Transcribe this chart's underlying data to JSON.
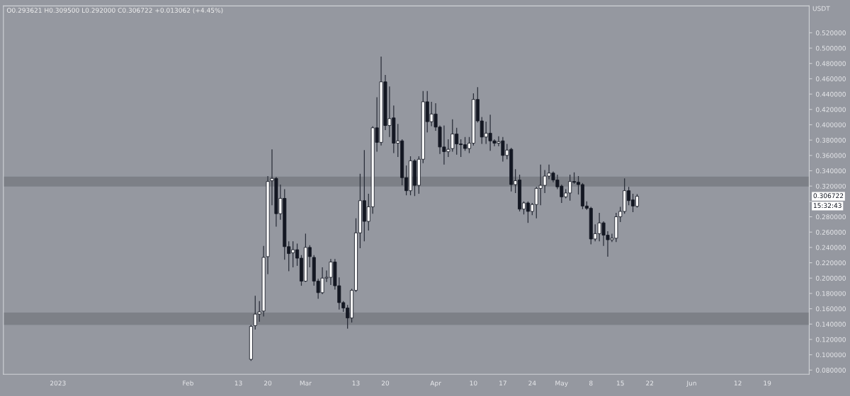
{
  "chart_data": {
    "type": "candlestick",
    "subtitle": "O0.293621 H0.309500 L0.292000 C0.306722 +0.013062 (+4.45%)",
    "ylabel": "USDT",
    "x": [
      "2023-02-16",
      "2023-02-17",
      "2023-02-18",
      "2023-02-19",
      "2023-02-20",
      "2023-02-21",
      "2023-02-22",
      "2023-02-23",
      "2023-02-24",
      "2023-02-25",
      "2023-02-26",
      "2023-02-27",
      "2023-02-28",
      "2023-03-01",
      "2023-03-02",
      "2023-03-03",
      "2023-03-04",
      "2023-03-05",
      "2023-03-06",
      "2023-03-07",
      "2023-03-08",
      "2023-03-09",
      "2023-03-10",
      "2023-03-11",
      "2023-03-12",
      "2023-03-13",
      "2023-03-14",
      "2023-03-15",
      "2023-03-16",
      "2023-03-17",
      "2023-03-18",
      "2023-03-19",
      "2023-03-20",
      "2023-03-21",
      "2023-03-22",
      "2023-03-23",
      "2023-03-24",
      "2023-03-25",
      "2023-03-26",
      "2023-03-27",
      "2023-03-28",
      "2023-03-29",
      "2023-03-30",
      "2023-03-31",
      "2023-04-01",
      "2023-04-02",
      "2023-04-03",
      "2023-04-04",
      "2023-04-05",
      "2023-04-06",
      "2023-04-07",
      "2023-04-08",
      "2023-04-09",
      "2023-04-10",
      "2023-04-11",
      "2023-04-12",
      "2023-04-13",
      "2023-04-14",
      "2023-04-15",
      "2023-04-16",
      "2023-04-17",
      "2023-04-18",
      "2023-04-19",
      "2023-04-20",
      "2023-04-21",
      "2023-04-22",
      "2023-04-23",
      "2023-04-24",
      "2023-04-25",
      "2023-04-26",
      "2023-04-27",
      "2023-04-28",
      "2023-04-29",
      "2023-04-30",
      "2023-05-01",
      "2023-05-02",
      "2023-05-03",
      "2023-05-04",
      "2023-05-05",
      "2023-05-06",
      "2023-05-07",
      "2023-05-08",
      "2023-05-09",
      "2023-05-10",
      "2023-05-11",
      "2023-05-12",
      "2023-05-13",
      "2023-05-14",
      "2023-05-15",
      "2023-05-16",
      "2023-05-17",
      "2023-05-18",
      "2023-05-19"
    ],
    "ohlc": [
      [
        0.094,
        0.139,
        0.092,
        0.137
      ],
      [
        0.138,
        0.177,
        0.133,
        0.153
      ],
      [
        0.153,
        0.17,
        0.143,
        0.156
      ],
      [
        0.157,
        0.242,
        0.15,
        0.227
      ],
      [
        0.228,
        0.333,
        0.205,
        0.326
      ],
      [
        0.327,
        0.368,
        0.295,
        0.33
      ],
      [
        0.33,
        0.332,
        0.267,
        0.284
      ],
      [
        0.284,
        0.322,
        0.276,
        0.304
      ],
      [
        0.304,
        0.316,
        0.224,
        0.241
      ],
      [
        0.241,
        0.248,
        0.209,
        0.232
      ],
      [
        0.233,
        0.248,
        0.214,
        0.237
      ],
      [
        0.237,
        0.245,
        0.216,
        0.226
      ],
      [
        0.226,
        0.23,
        0.19,
        0.196
      ],
      [
        0.196,
        0.258,
        0.195,
        0.24
      ],
      [
        0.24,
        0.243,
        0.214,
        0.228
      ],
      [
        0.227,
        0.23,
        0.19,
        0.196
      ],
      [
        0.196,
        0.199,
        0.173,
        0.181
      ],
      [
        0.181,
        0.214,
        0.179,
        0.2
      ],
      [
        0.2,
        0.21,
        0.195,
        0.201
      ],
      [
        0.201,
        0.225,
        0.191,
        0.221
      ],
      [
        0.221,
        0.225,
        0.185,
        0.19
      ],
      [
        0.19,
        0.201,
        0.159,
        0.168
      ],
      [
        0.168,
        0.17,
        0.156,
        0.161
      ],
      [
        0.161,
        0.165,
        0.134,
        0.148
      ],
      [
        0.148,
        0.186,
        0.142,
        0.184
      ],
      [
        0.184,
        0.278,
        0.182,
        0.259
      ],
      [
        0.259,
        0.336,
        0.239,
        0.301
      ],
      [
        0.301,
        0.367,
        0.248,
        0.274
      ],
      [
        0.274,
        0.31,
        0.262,
        0.293
      ],
      [
        0.293,
        0.398,
        0.284,
        0.396
      ],
      [
        0.396,
        0.436,
        0.365,
        0.377
      ],
      [
        0.377,
        0.489,
        0.373,
        0.456
      ],
      [
        0.456,
        0.465,
        0.393,
        0.399
      ],
      [
        0.399,
        0.45,
        0.384,
        0.408
      ],
      [
        0.409,
        0.425,
        0.363,
        0.376
      ],
      [
        0.376,
        0.401,
        0.358,
        0.379
      ],
      [
        0.379,
        0.381,
        0.321,
        0.331
      ],
      [
        0.331,
        0.347,
        0.308,
        0.314
      ],
      [
        0.314,
        0.359,
        0.308,
        0.353
      ],
      [
        0.353,
        0.355,
        0.307,
        0.321
      ],
      [
        0.321,
        0.359,
        0.31,
        0.355
      ],
      [
        0.355,
        0.444,
        0.35,
        0.43
      ],
      [
        0.43,
        0.444,
        0.39,
        0.404
      ],
      [
        0.404,
        0.43,
        0.398,
        0.414
      ],
      [
        0.414,
        0.428,
        0.392,
        0.397
      ],
      [
        0.397,
        0.399,
        0.362,
        0.371
      ],
      [
        0.371,
        0.399,
        0.348,
        0.365
      ],
      [
        0.365,
        0.381,
        0.358,
        0.368
      ],
      [
        0.369,
        0.407,
        0.365,
        0.388
      ],
      [
        0.388,
        0.396,
        0.361,
        0.375
      ],
      [
        0.375,
        0.381,
        0.358,
        0.374
      ],
      [
        0.374,
        0.384,
        0.366,
        0.369
      ],
      [
        0.369,
        0.384,
        0.363,
        0.376
      ],
      [
        0.376,
        0.441,
        0.373,
        0.433
      ],
      [
        0.433,
        0.449,
        0.403,
        0.405
      ],
      [
        0.405,
        0.41,
        0.375,
        0.384
      ],
      [
        0.384,
        0.404,
        0.375,
        0.389
      ],
      [
        0.389,
        0.413,
        0.366,
        0.379
      ],
      [
        0.379,
        0.381,
        0.372,
        0.376
      ],
      [
        0.376,
        0.385,
        0.372,
        0.378
      ],
      [
        0.379,
        0.384,
        0.352,
        0.36
      ],
      [
        0.36,
        0.375,
        0.355,
        0.367
      ],
      [
        0.368,
        0.37,
        0.313,
        0.322
      ],
      [
        0.322,
        0.342,
        0.311,
        0.327
      ],
      [
        0.328,
        0.335,
        0.287,
        0.29
      ],
      [
        0.29,
        0.3,
        0.283,
        0.298
      ],
      [
        0.298,
        0.3,
        0.272,
        0.287
      ],
      [
        0.287,
        0.298,
        0.282,
        0.296
      ],
      [
        0.296,
        0.319,
        0.278,
        0.317
      ],
      [
        0.317,
        0.348,
        0.295,
        0.321
      ],
      [
        0.321,
        0.341,
        0.311,
        0.333
      ],
      [
        0.333,
        0.348,
        0.329,
        0.337
      ],
      [
        0.337,
        0.339,
        0.325,
        0.328
      ],
      [
        0.328,
        0.335,
        0.316,
        0.319
      ],
      [
        0.32,
        0.322,
        0.298,
        0.306
      ],
      [
        0.306,
        0.316,
        0.304,
        0.311
      ],
      [
        0.311,
        0.335,
        0.301,
        0.326
      ],
      [
        0.326,
        0.338,
        0.323,
        0.325
      ],
      [
        0.325,
        0.333,
        0.309,
        0.322
      ],
      [
        0.322,
        0.324,
        0.29,
        0.294
      ],
      [
        0.294,
        0.3,
        0.289,
        0.291
      ],
      [
        0.291,
        0.293,
        0.244,
        0.251
      ],
      [
        0.251,
        0.27,
        0.248,
        0.258
      ],
      [
        0.258,
        0.285,
        0.248,
        0.272
      ],
      [
        0.272,
        0.274,
        0.242,
        0.256
      ],
      [
        0.256,
        0.261,
        0.228,
        0.25
      ],
      [
        0.25,
        0.258,
        0.247,
        0.252
      ],
      [
        0.252,
        0.285,
        0.247,
        0.28
      ],
      [
        0.28,
        0.293,
        0.273,
        0.287
      ],
      [
        0.287,
        0.33,
        0.284,
        0.314
      ],
      [
        0.314,
        0.319,
        0.295,
        0.301
      ],
      [
        0.302,
        0.31,
        0.286,
        0.294
      ],
      [
        0.293621,
        0.3095,
        0.292,
        0.306722
      ]
    ],
    "colors": [
      "#ffffff",
      "#ffffff",
      "#ffffff",
      "#ffffff",
      "#ffffff",
      "#ffffff",
      "#131722",
      "#ffffff",
      "#131722",
      "#131722",
      "#ffffff",
      "#131722",
      "#131722",
      "#ffffff",
      "#131722",
      "#131722",
      "#131722",
      "#ffffff",
      "#ffffff",
      "#ffffff",
      "#131722",
      "#131722",
      "#131722",
      "#131722",
      "#ffffff",
      "#ffffff",
      "#ffffff",
      "#131722",
      "#ffffff",
      "#ffffff",
      "#131722",
      "#ffffff",
      "#131722",
      "#ffffff",
      "#131722",
      "#ffffff",
      "#131722",
      "#131722",
      "#ffffff",
      "#131722",
      "#ffffff",
      "#ffffff",
      "#131722",
      "#ffffff",
      "#131722",
      "#131722",
      "#131722",
      "#ffffff",
      "#ffffff",
      "#131722",
      "#131722",
      "#131722",
      "#ffffff",
      "#ffffff",
      "#131722",
      "#131722",
      "#ffffff",
      "#131722",
      "#131722",
      "#ffffff",
      "#131722",
      "#ffffff",
      "#131722",
      "#ffffff",
      "#131722",
      "#ffffff",
      "#131722",
      "#ffffff",
      "#ffffff",
      "#ffffff",
      "#ffffff",
      "#ffffff",
      "#131722",
      "#131722",
      "#131722",
      "#ffffff",
      "#ffffff",
      "#131722",
      "#131722",
      "#131722",
      "#131722",
      "#131722",
      "#ffffff",
      "#ffffff",
      "#131722",
      "#131722",
      "#ffffff",
      "#ffffff",
      "#ffffff",
      "#ffffff",
      "#131722",
      "#131722",
      "#ffffff"
    ],
    "xlim": [
      "2022-12-19",
      "2023-06-29"
    ],
    "xticks": [
      {
        "value": "2023-01-01",
        "label": "2023"
      },
      {
        "value": "2023-02-01",
        "label": "Feb"
      },
      {
        "value": "2023-02-13",
        "label": "13"
      },
      {
        "value": "2023-02-20",
        "label": "20"
      },
      {
        "value": "2023-03-01",
        "label": "Mar"
      },
      {
        "value": "2023-03-13",
        "label": "13"
      },
      {
        "value": "2023-03-20",
        "label": "20"
      },
      {
        "value": "2023-04-01",
        "label": "Apr"
      },
      {
        "value": "2023-04-10",
        "label": "10"
      },
      {
        "value": "2023-04-17",
        "label": "17"
      },
      {
        "value": "2023-04-24",
        "label": "24"
      },
      {
        "value": "2023-05-01",
        "label": "May"
      },
      {
        "value": "2023-05-08",
        "label": "8"
      },
      {
        "value": "2023-05-15",
        "label": "15"
      },
      {
        "value": "2023-05-22",
        "label": "22"
      },
      {
        "value": "2023-06-01",
        "label": "Jun"
      },
      {
        "value": "2023-06-12",
        "label": "12"
      },
      {
        "value": "2023-06-19",
        "label": "19"
      }
    ],
    "ylim": [
      0.0746,
      0.555
    ],
    "yticks": [
      {
        "value": 0.08,
        "label": "0.080000"
      },
      {
        "value": 0.1,
        "label": "0.100000"
      },
      {
        "value": 0.12,
        "label": "0.120000"
      },
      {
        "value": 0.14,
        "label": "0.140000"
      },
      {
        "value": 0.16,
        "label": "0.160000"
      },
      {
        "value": 0.18,
        "label": "0.180000"
      },
      {
        "value": 0.2,
        "label": "0.200000"
      },
      {
        "value": 0.22,
        "label": "0.220000"
      },
      {
        "value": 0.24,
        "label": "0.240000"
      },
      {
        "value": 0.26,
        "label": "0.260000"
      },
      {
        "value": 0.28,
        "label": "0.280000"
      },
      {
        "value": 0.3,
        "label": null
      },
      {
        "value": 0.32,
        "label": "0.320000"
      },
      {
        "value": 0.34,
        "label": "0.340000"
      },
      {
        "value": 0.36,
        "label": "0.360000"
      },
      {
        "value": 0.38,
        "label": "0.380000"
      },
      {
        "value": 0.4,
        "label": "0.400000"
      },
      {
        "value": 0.42,
        "label": "0.420000"
      },
      {
        "value": 0.44,
        "label": "0.440000"
      },
      {
        "value": 0.46,
        "label": "0.460000"
      },
      {
        "value": 0.48,
        "label": "0.480000"
      },
      {
        "value": 0.5,
        "label": "0.500000"
      },
      {
        "value": 0.52,
        "label": "0.520000"
      }
    ],
    "bands": [
      {
        "axis": "y",
        "from": 0.3195,
        "to": 0.3324,
        "color": "#7d8087"
      },
      {
        "axis": "y",
        "from": 0.139,
        "to": 0.155,
        "color": "#7d8087"
      }
    ],
    "annotations": [
      "0.306722",
      "15:32:43"
    ],
    "grid": false,
    "legend": false
  }
}
